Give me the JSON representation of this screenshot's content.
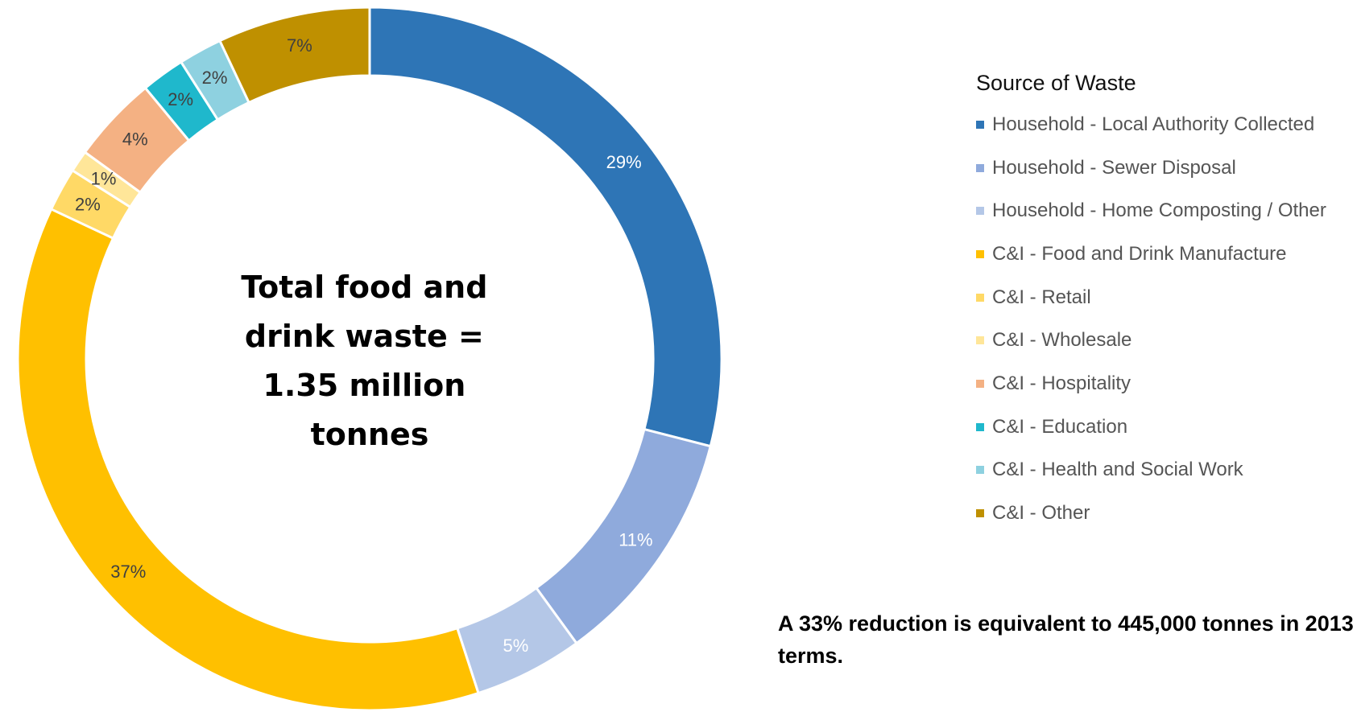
{
  "chart_data": {
    "type": "pie",
    "title": "",
    "center_text": [
      "Total food and",
      "drink waste =",
      "1.35 million",
      "tonnes"
    ],
    "legend_title": "Source of Waste",
    "legend_placement": "right",
    "slices": [
      {
        "name": "Household - Local Authority Collected",
        "value": 29,
        "label": "29%",
        "color": "#2E75B6",
        "label_color": "#ffffff"
      },
      {
        "name": "Household - Sewer Disposal",
        "value": 11,
        "label": "11%",
        "color": "#8FAADC",
        "label_color": "#ffffff"
      },
      {
        "name": "Household - Home Composting / Other",
        "value": 5,
        "label": "5%",
        "color": "#B4C7E7",
        "label_color": "#ffffff"
      },
      {
        "name": "C&I - Food and Drink Manufacture",
        "value": 37,
        "label": "37%",
        "color": "#FFC000",
        "label_color": "#404040"
      },
      {
        "name": "C&I - Retail",
        "value": 2,
        "label": "2%",
        "color": "#FFD966",
        "label_color": "#404040"
      },
      {
        "name": "C&I - Wholesale",
        "value": 1,
        "label": "1%",
        "color": "#FFE699",
        "label_color": "#404040"
      },
      {
        "name": "C&I - Hospitality",
        "value": 4,
        "label": "4%",
        "color": "#F4B183",
        "label_color": "#404040"
      },
      {
        "name": "C&I - Education",
        "value": 2,
        "label": "2%",
        "color": "#1FB8CC",
        "label_color": "#404040"
      },
      {
        "name": "C&I - Health and Social Work",
        "value": 2,
        "label": "2%",
        "color": "#8ED1E0",
        "label_color": "#404040"
      },
      {
        "name": "C&I - Other",
        "value": 7,
        "label": "7%",
        "color": "#BF9000",
        "label_color": "#404040"
      }
    ]
  },
  "note": "A 33% reduction is equivalent to 445,000 tonnes in 2013 terms."
}
